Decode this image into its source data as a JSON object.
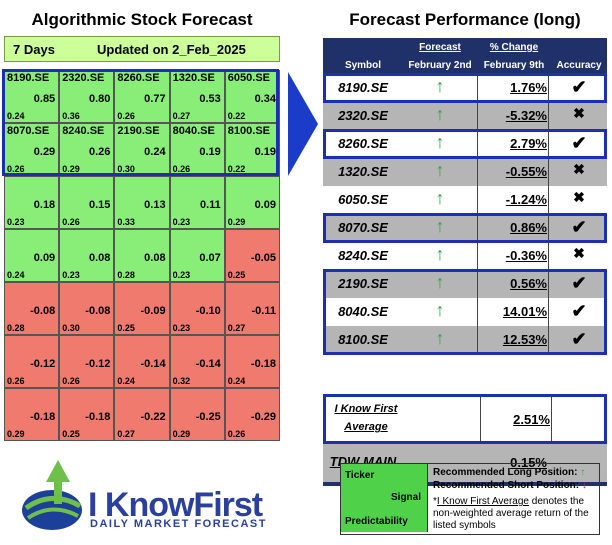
{
  "left": {
    "title": "Algorithmic Stock Forecast",
    "horizon": "7 Days",
    "updated": "Updated on 2_Feb_2025",
    "rows": [
      [
        {
          "sym": "8190.SE",
          "sig": "0.85",
          "pred": "0.24"
        },
        {
          "sym": "2320.SE",
          "sig": "0.80",
          "pred": "0.36"
        },
        {
          "sym": "8260.SE",
          "sig": "0.77",
          "pred": "0.26"
        },
        {
          "sym": "1320.SE",
          "sig": "0.53",
          "pred": "0.27"
        },
        {
          "sym": "6050.SE",
          "sig": "0.34",
          "pred": "0.22"
        }
      ],
      [
        {
          "sym": "8070.SE",
          "sig": "0.29",
          "pred": "0.26"
        },
        {
          "sym": "8240.SE",
          "sig": "0.26",
          "pred": "0.29"
        },
        {
          "sym": "2190.SE",
          "sig": "0.24",
          "pred": "0.30"
        },
        {
          "sym": "8040.SE",
          "sig": "0.19",
          "pred": "0.26"
        },
        {
          "sym": "8100.SE",
          "sig": "0.19",
          "pred": "0.22"
        }
      ],
      [
        {
          "sym": "",
          "sig": "0.18",
          "pred": "0.23"
        },
        {
          "sym": "",
          "sig": "0.15",
          "pred": "0.26"
        },
        {
          "sym": "",
          "sig": "0.13",
          "pred": "0.33"
        },
        {
          "sym": "",
          "sig": "0.11",
          "pred": "0.23"
        },
        {
          "sym": "",
          "sig": "0.09",
          "pred": "0.29"
        }
      ],
      [
        {
          "sym": "",
          "sig": "0.09",
          "pred": "0.24"
        },
        {
          "sym": "",
          "sig": "0.08",
          "pred": "0.23"
        },
        {
          "sym": "",
          "sig": "0.08",
          "pred": "0.28"
        },
        {
          "sym": "",
          "sig": "0.07",
          "pred": "0.23"
        },
        {
          "sym": "",
          "sig": "-0.05",
          "pred": "0.25"
        }
      ],
      [
        {
          "sym": "",
          "sig": "-0.08",
          "pred": "0.28"
        },
        {
          "sym": "",
          "sig": "-0.08",
          "pred": "0.30"
        },
        {
          "sym": "",
          "sig": "-0.09",
          "pred": "0.25"
        },
        {
          "sym": "",
          "sig": "-0.10",
          "pred": "0.23"
        },
        {
          "sym": "",
          "sig": "-0.11",
          "pred": "0.27"
        }
      ],
      [
        {
          "sym": "",
          "sig": "-0.12",
          "pred": "0.26"
        },
        {
          "sym": "",
          "sig": "-0.12",
          "pred": "0.26"
        },
        {
          "sym": "",
          "sig": "-0.14",
          "pred": "0.24"
        },
        {
          "sym": "",
          "sig": "-0.14",
          "pred": "0.32"
        },
        {
          "sym": "",
          "sig": "-0.18",
          "pred": "0.24"
        }
      ],
      [
        {
          "sym": "",
          "sig": "-0.18",
          "pred": "0.29"
        },
        {
          "sym": "",
          "sig": "-0.18",
          "pred": "0.25"
        },
        {
          "sym": "",
          "sig": "-0.22",
          "pred": "0.27"
        },
        {
          "sym": "",
          "sig": "-0.25",
          "pred": "0.29"
        },
        {
          "sym": "",
          "sig": "-0.29",
          "pred": "0.26"
        }
      ]
    ]
  },
  "right": {
    "title": "Forecast Performance (long)",
    "headers": {
      "symbol": "Symbol",
      "forecast": "Forecast",
      "forecast_date": "February 2nd",
      "change": "% Change",
      "change_date": "February 9th",
      "accuracy": "Accuracy"
    },
    "rows": [
      {
        "sym": "8190.SE",
        "change": "1.76%",
        "acc": "check"
      },
      {
        "sym": "2320.SE",
        "change": "-5.32%",
        "acc": "cross"
      },
      {
        "sym": "8260.SE",
        "change": "2.79%",
        "acc": "check"
      },
      {
        "sym": "1320.SE",
        "change": "-0.55%",
        "acc": "cross"
      },
      {
        "sym": "6050.SE",
        "change": "-1.24%",
        "acc": "cross"
      },
      {
        "sym": "8070.SE",
        "change": "0.86%",
        "acc": "check"
      },
      {
        "sym": "8240.SE",
        "change": "-0.36%",
        "acc": "cross"
      },
      {
        "sym": "2190.SE",
        "change": "0.56%",
        "acc": "check"
      },
      {
        "sym": "8040.SE",
        "change": "14.01%",
        "acc": "check"
      },
      {
        "sym": "8100.SE",
        "change": "12.53%",
        "acc": "check"
      }
    ],
    "avg_label_1": "I Know First",
    "avg_label_2": "Average",
    "avg_value": "2.51%",
    "tdw_label": "TDW MAIN",
    "tdw_value": "0.15%"
  },
  "logo": {
    "brand": "I KnowFirst",
    "tagline": "Daily Market Forecast"
  },
  "legend": {
    "ticker": "Ticker",
    "signal": "Signal",
    "predictability": "Predictability",
    "long": "Recommended Long Position:",
    "short": "Recommended Short Position:",
    "note_star": "*",
    "note_link": "I Know First Average",
    "note_rest": " denotes the non-weighted average return of the listed symbols"
  },
  "colors": {
    "green": "#88ee77",
    "red": "#f07a6e",
    "navy": "#203068",
    "highlight": "#1d2fb0",
    "up_arrow": "#2aa84a",
    "down_arrow": "#e03030"
  }
}
